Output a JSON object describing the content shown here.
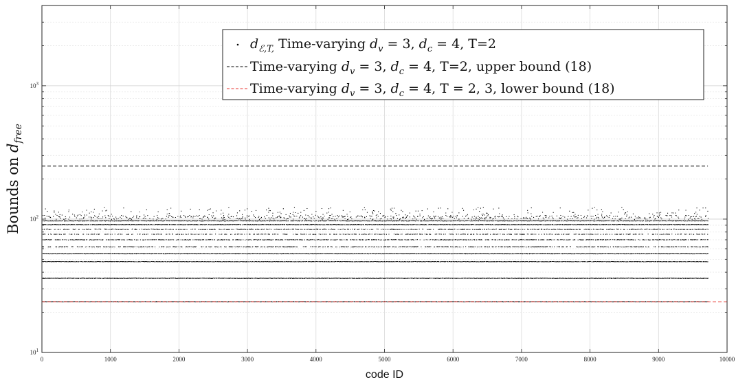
{
  "chart_data": {
    "type": "scatter",
    "xlabel": "code ID",
    "ylabel": "Bounds on d_free",
    "xlim": [
      0,
      10000
    ],
    "ylim": [
      10,
      4000
    ],
    "yscale": "log",
    "grid": true,
    "legend_position": "top-right",
    "x_ticks": [
      "0",
      "1000",
      "2000",
      "3000",
      "4000",
      "5000",
      "6000",
      "7000",
      "8000",
      "9000",
      "10000"
    ],
    "y_ticks": [
      {
        "base": "10",
        "exp": "1"
      },
      {
        "base": "10",
        "exp": "2"
      },
      {
        "base": "10",
        "exp": "3"
      }
    ],
    "num_codes": 9720,
    "series": [
      {
        "name": "d_ℰ,T, Time-varying d_v = 3, d_c = 4, T=2",
        "style": "points",
        "color": "#000000",
        "levels": [
          24,
          36,
          48,
          55,
          62,
          70,
          77,
          84,
          91,
          97,
          103,
          110,
          118
        ],
        "level_density": [
          1.0,
          1.0,
          1.0,
          1.0,
          0.55,
          0.6,
          0.45,
          0.55,
          0.95,
          0.95,
          0.5,
          0.12,
          0.07
        ]
      },
      {
        "name": "Time-varying d_v = 3, d_c = 4, T=2, upper bound (18)",
        "style": "dashed",
        "color": "#000000",
        "x": [
          0,
          9720
        ],
        "y": [
          250,
          250
        ]
      },
      {
        "name": "Time-varying d_v = 3, d_c = 4, T = 2, 3, lower bound (18)",
        "style": "dashed",
        "color": "#e8322c",
        "x": [
          0,
          10000
        ],
        "y": [
          24,
          24
        ]
      }
    ]
  }
}
